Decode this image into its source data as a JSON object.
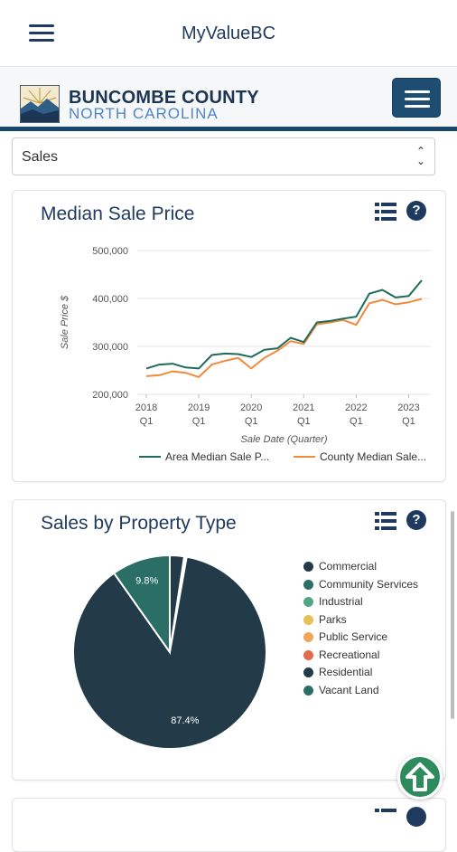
{
  "appbar": {
    "title": "MyValueBC",
    "menu_icon": "hamburger-icon"
  },
  "site_header": {
    "county_name": "BUNCOMBE COUNTY",
    "state_name": "NORTH CAROLINA",
    "menu_icon": "hamburger-icon",
    "rule_color": "#17466e"
  },
  "select": {
    "value": "Sales"
  },
  "median_card": {
    "title": "Median Sale Price",
    "list_icon": "list-icon",
    "help_icon": "question-circle-icon",
    "help_glyph": "?"
  },
  "median_legend": {
    "area": "Area Median Sale P...",
    "county": "County Median Sale..."
  },
  "property_card": {
    "title": "Sales by Property Type",
    "list_icon": "list-icon",
    "help_icon": "question-circle-icon",
    "help_glyph": "?",
    "legend": [
      {
        "label": "Commercial",
        "color": "#233a48"
      },
      {
        "label": "Community Services",
        "color": "#2a6e65"
      },
      {
        "label": "Industrial",
        "color": "#52a885"
      },
      {
        "label": "Parks",
        "color": "#e8bf59"
      },
      {
        "label": "Public Service",
        "color": "#f0a65a"
      },
      {
        "label": "Recreational",
        "color": "#e06c4c"
      },
      {
        "label": "Residential",
        "color": "#233a48"
      },
      {
        "label": "Vacant Land",
        "color": "#2a6e65"
      }
    ]
  },
  "chart_data": [
    {
      "type": "line",
      "title": "Median Sale Price",
      "xlabel": "Sale Date (Quarter)",
      "ylabel": "Sale Price $",
      "ylim": [
        200000,
        500000
      ],
      "yticks": [
        "500,000",
        "400,000",
        "300,000",
        "200,000"
      ],
      "ytick_values": [
        500000,
        400000,
        300000,
        200000
      ],
      "xticks": [
        {
          "year": "2018",
          "q": "Q1",
          "index": 0
        },
        {
          "year": "2019",
          "q": "Q1",
          "index": 4
        },
        {
          "year": "2020",
          "q": "Q1",
          "index": 8
        },
        {
          "year": "2021",
          "q": "Q1",
          "index": 12
        },
        {
          "year": "2022",
          "q": "Q1",
          "index": 16
        },
        {
          "year": "2023",
          "q": "Q1",
          "index": 20
        }
      ],
      "grid": true,
      "legend_position": "bottom",
      "series": [
        {
          "name": "Area Median Sale P...",
          "color": "#1f6b5a",
          "values": [
            254000,
            262000,
            264000,
            256000,
            254000,
            282000,
            285000,
            284000,
            278000,
            293000,
            296000,
            318000,
            309000,
            350000,
            353000,
            358000,
            362000,
            410000,
            418000,
            402000,
            405000,
            438000
          ]
        },
        {
          "name": "County Median Sale...",
          "color": "#f08a3c",
          "values": [
            238000,
            240000,
            248000,
            245000,
            236000,
            262000,
            270000,
            276000,
            254000,
            276000,
            291000,
            311000,
            305000,
            346000,
            350000,
            355000,
            345000,
            390000,
            397000,
            388000,
            392000,
            399000
          ]
        }
      ]
    },
    {
      "type": "pie",
      "title": "Sales by Property Type",
      "legend_position": "right",
      "categories": [
        "Commercial",
        "Community Services",
        "Industrial",
        "Parks",
        "Public Service",
        "Recreational",
        "Residential",
        "Vacant Land"
      ],
      "values": [
        2.4,
        0.2,
        0.1,
        0.05,
        0.05,
        0.0,
        87.4,
        9.8
      ],
      "slice_labels": [
        "",
        "",
        "",
        "",
        "",
        "",
        "87.4%",
        "9.8%"
      ],
      "colors": [
        "#233a48",
        "#2a6e65",
        "#52a885",
        "#e8bf59",
        "#f0a65a",
        "#e06c4c",
        "#233a48",
        "#2a6e65"
      ]
    }
  ],
  "fab": {
    "icon": "arrow-up-icon",
    "color": "#2e8b5e"
  }
}
